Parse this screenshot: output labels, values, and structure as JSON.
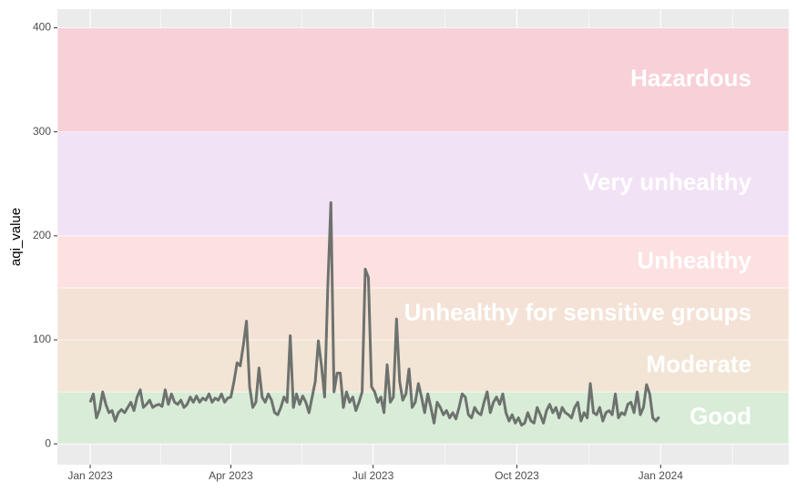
{
  "chart_data": {
    "type": "line",
    "y_label": "aqi_value",
    "x": [
      0,
      2,
      4,
      6,
      8,
      10,
      12,
      14,
      16,
      18,
      20,
      22,
      24,
      26,
      28,
      30,
      32,
      34,
      36,
      38,
      40,
      42,
      44,
      46,
      48,
      50,
      52,
      54,
      56,
      58,
      60,
      62,
      64,
      66,
      68,
      70,
      72,
      74,
      76,
      78,
      80,
      82,
      84,
      86,
      88,
      90,
      92,
      94,
      96,
      98,
      100,
      102,
      104,
      106,
      108,
      110,
      112,
      114,
      116,
      118,
      120,
      122,
      124,
      126,
      128,
      130,
      132,
      134,
      136,
      138,
      140,
      142,
      144,
      146,
      148,
      150,
      152,
      154,
      156,
      158,
      160,
      162,
      164,
      166,
      168,
      170,
      172,
      174,
      176,
      178,
      180,
      182,
      184,
      186,
      188,
      190,
      192,
      194,
      196,
      198,
      200,
      202,
      204,
      206,
      208,
      210,
      212,
      214,
      216,
      218,
      220,
      222,
      224,
      226,
      228,
      230,
      232,
      234,
      236,
      238,
      240,
      242,
      244,
      246,
      248,
      250,
      252,
      254,
      256,
      258,
      260,
      262,
      264,
      266,
      268,
      270,
      272,
      274,
      276,
      278,
      280,
      282,
      284,
      286,
      288,
      290,
      292,
      294,
      296,
      298,
      300,
      302,
      304,
      306,
      308,
      310,
      312,
      314,
      316,
      318,
      320,
      322,
      324,
      326,
      328,
      330,
      332,
      334,
      336,
      338,
      340,
      342,
      344,
      346,
      348,
      350,
      352,
      354,
      356,
      358,
      360,
      362,
      364
    ],
    "series": [
      {
        "name": "aqi_value",
        "color": "#6e726e",
        "values": [
          40,
          48,
          25,
          33,
          50,
          38,
          30,
          32,
          22,
          30,
          33,
          30,
          35,
          40,
          32,
          45,
          52,
          35,
          38,
          42,
          35,
          37,
          38,
          36,
          52,
          38,
          48,
          40,
          38,
          42,
          35,
          38,
          45,
          40,
          46,
          40,
          44,
          42,
          48,
          40,
          44,
          42,
          48,
          40,
          44,
          45,
          60,
          78,
          75,
          95,
          118,
          55,
          35,
          40,
          73,
          45,
          40,
          48,
          42,
          30,
          28,
          35,
          45,
          40,
          104,
          35,
          48,
          38,
          46,
          40,
          30,
          45,
          60,
          99,
          75,
          45,
          150,
          232,
          50,
          68,
          68,
          35,
          50,
          40,
          45,
          32,
          40,
          50,
          168,
          160,
          55,
          50,
          40,
          45,
          30,
          76,
          40,
          45,
          120,
          60,
          42,
          48,
          72,
          35,
          40,
          58,
          45,
          30,
          48,
          35,
          20,
          40,
          35,
          28,
          32,
          25,
          30,
          24,
          35,
          48,
          45,
          28,
          25,
          35,
          30,
          28,
          40,
          50,
          30,
          40,
          45,
          38,
          48,
          30,
          22,
          28,
          20,
          25,
          18,
          20,
          30,
          22,
          20,
          35,
          28,
          20,
          32,
          38,
          30,
          35,
          25,
          35,
          30,
          28,
          25,
          35,
          40,
          22,
          30,
          25,
          58,
          30,
          28,
          35,
          22,
          30,
          32,
          28,
          48,
          25,
          30,
          28,
          38,
          40,
          30,
          50,
          28,
          35,
          57,
          48,
          25,
          22,
          26
        ]
      }
    ],
    "bands": [
      {
        "label": "Good",
        "from": 0,
        "to": 50,
        "color": "#d8ecd8"
      },
      {
        "label": "Moderate",
        "from": 50,
        "to": 100,
        "color": "#f2e5d5"
      },
      {
        "label": "Unhealthy for sensitive groups",
        "from": 100,
        "to": 150,
        "color": "#f4e2d6"
      },
      {
        "label": "Unhealthy",
        "from": 150,
        "to": 200,
        "color": "#fde0e0"
      },
      {
        "label": "Very unhealthy",
        "from": 200,
        "to": 300,
        "color": "#f2e2f5"
      },
      {
        "label": "Hazardous",
        "from": 300,
        "to": 400,
        "color": "#f8d0d7"
      }
    ],
    "xlim": [
      -21,
      447
    ],
    "xticks": [
      {
        "value": 0,
        "label": "Jan 2023"
      },
      {
        "value": 90,
        "label": "Apr 2023"
      },
      {
        "value": 181,
        "label": "Jul 2023"
      },
      {
        "value": 273,
        "label": "Oct 2023"
      },
      {
        "value": 365,
        "label": "Jan 2024"
      }
    ],
    "ylim": [
      -20,
      418
    ],
    "yticks": [
      0,
      100,
      200,
      300,
      400
    ],
    "grid": true
  }
}
